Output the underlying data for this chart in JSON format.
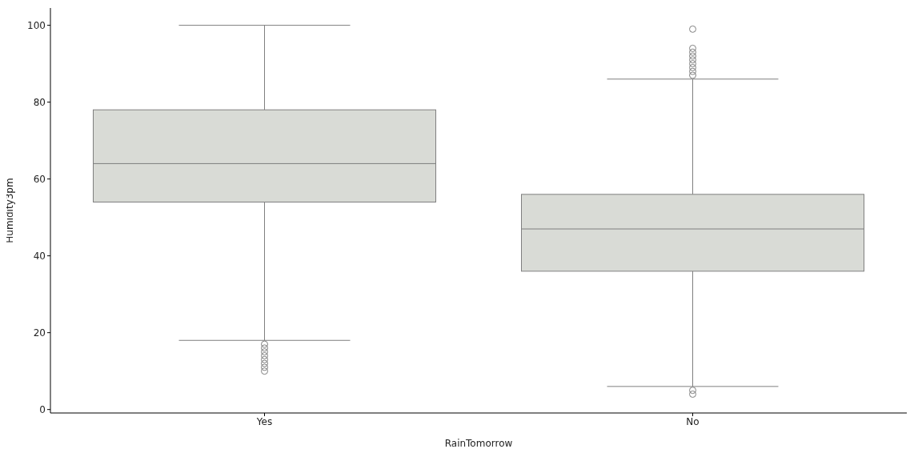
{
  "chart_data": {
    "type": "box",
    "xlabel": "RainTomorrow",
    "ylabel": "Humidity3pm",
    "categories": [
      "Yes",
      "No"
    ],
    "color": "#d9dbd6",
    "ylim": [
      -0.9,
      104.5
    ],
    "yticks": [
      0,
      20,
      40,
      60,
      80,
      100
    ],
    "grid": false,
    "legend": false,
    "boxes": [
      {
        "low": 18,
        "q1": 54,
        "median": 64,
        "q3": 78,
        "high": 100,
        "outliers": [
          17,
          16,
          15,
          14,
          13,
          12,
          11,
          10
        ]
      },
      {
        "low": 6,
        "q1": 36,
        "median": 47,
        "q3": 56,
        "high": 86,
        "outliers": [
          87,
          88,
          89,
          90,
          91,
          92,
          93,
          94,
          99,
          5,
          4
        ]
      }
    ]
  }
}
